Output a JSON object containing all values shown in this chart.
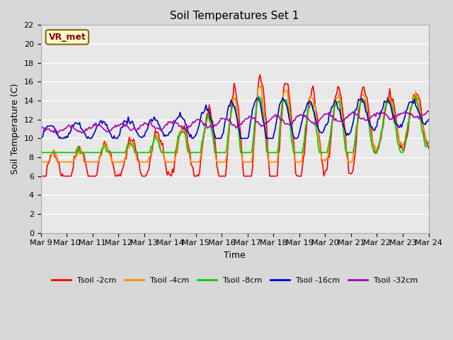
{
  "title": "Soil Temperatures Set 1",
  "xlabel": "Time",
  "ylabel": "Soil Temperature (C)",
  "ylim": [
    0,
    22
  ],
  "yticks": [
    0,
    2,
    4,
    6,
    8,
    10,
    12,
    14,
    16,
    18,
    20,
    22
  ],
  "annotation_text": "VR_met",
  "colors": {
    "Tsoil -2cm": "#ff0000",
    "Tsoil -4cm": "#ff8c00",
    "Tsoil -8cm": "#00cc00",
    "Tsoil -16cm": "#0000cc",
    "Tsoil -32cm": "#aa00aa"
  },
  "x_labels": [
    "Mar 9",
    "Mar 10",
    "Mar 11",
    "Mar 12",
    "Mar 13",
    "Mar 14",
    "Mar 15",
    "Mar 16",
    "Mar 17",
    "Mar 18",
    "Mar 19",
    "Mar 20",
    "Mar 21",
    "Mar 22",
    "Mar 23",
    "Mar 24"
  ],
  "n_days": 15,
  "points_per_day": 24
}
